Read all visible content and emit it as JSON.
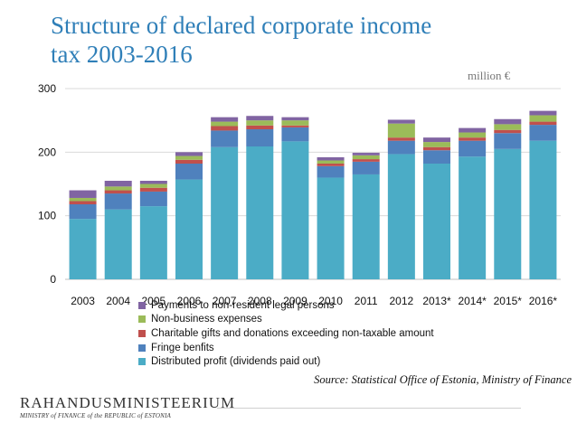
{
  "header": {
    "title_line1": "Structure of declared corporate income",
    "title_line2": "tax  2003-2016",
    "unit": "million €"
  },
  "chart_data": {
    "type": "bar",
    "stacked": true,
    "categories": [
      "2003",
      "2004",
      "2005",
      "2006",
      "2007",
      "2008",
      "2009",
      "2010",
      "2011",
      "2012",
      "2013*",
      "2014*",
      "2015*",
      "2016*"
    ],
    "ylim": [
      0,
      300
    ],
    "yticks": [
      "0",
      "100",
      "200",
      "300"
    ],
    "grid": "horizontal",
    "legend_position": "bottom",
    "series": [
      {
        "name": "Distributed profit (dividends paid out)",
        "color": "#4bacc6",
        "values": [
          95,
          110,
          115,
          157,
          208,
          209,
          217,
          160,
          165,
          197,
          182,
          193,
          205,
          218
        ]
      },
      {
        "name": "Fringe benfits",
        "color": "#4f81bd",
        "values": [
          23,
          25,
          23,
          25,
          26,
          27,
          22,
          18,
          20,
          21,
          21,
          25,
          25,
          25
        ]
      },
      {
        "name": "Charitable gifts and donations exceeding non-taxable amount",
        "color": "#c0504d",
        "values": [
          5,
          5,
          6,
          6,
          7,
          6,
          3,
          4,
          4,
          5,
          5,
          5,
          5,
          5
        ]
      },
      {
        "name": "Non-business expenses",
        "color": "#9bbb59",
        "values": [
          5,
          6,
          6,
          6,
          7,
          8,
          8,
          5,
          6,
          22,
          8,
          8,
          9,
          10
        ]
      },
      {
        "name": "Payments to non-resident legal persons",
        "color": "#8064a2",
        "values": [
          12,
          9,
          5,
          6,
          7,
          7,
          5,
          5,
          4,
          6,
          7,
          7,
          8,
          7
        ]
      }
    ]
  },
  "footer": {
    "source": "Source: Statistical Office of Estonia, Ministry of Finance",
    "brand_name": "RAHANDUSMINISTEERIUM",
    "brand_sub": "MINISTRY of FINANCE of the REPUBLIC of ESTONIA"
  }
}
